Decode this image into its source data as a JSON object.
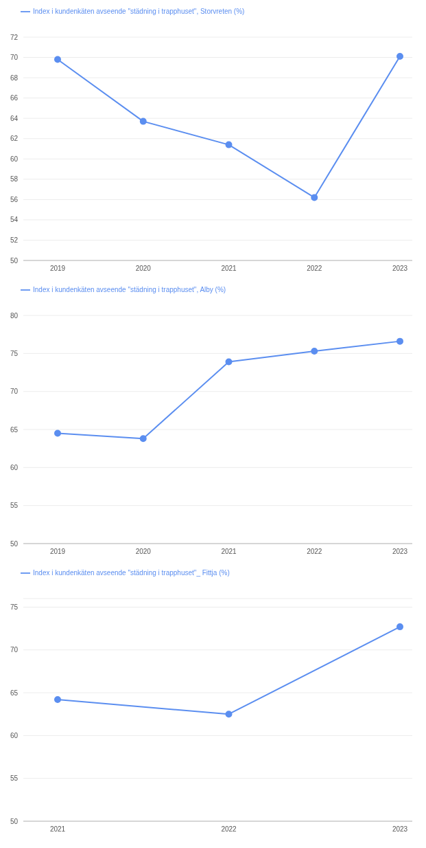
{
  "chart_data": [
    {
      "type": "line",
      "categories": [
        "2019",
        "2020",
        "2021",
        "2022",
        "2023"
      ],
      "series": [
        {
          "name": "Index i kundenkäten avseende \"städning i trapphuset\", Storvreten (%)",
          "color": "#5b8ef0",
          "values": [
            69.8,
            63.7,
            61.4,
            56.2,
            70.1
          ]
        }
      ],
      "ylim": [
        50,
        72
      ],
      "yticks": [
        50,
        52,
        54,
        56,
        58,
        60,
        62,
        64,
        66,
        68,
        70,
        72
      ],
      "grid": "y",
      "legend": "top left",
      "marker": "circle",
      "line_style": "solid"
    },
    {
      "type": "line",
      "categories": [
        "2019",
        "2020",
        "2021",
        "2022",
        "2023"
      ],
      "series": [
        {
          "name": "Index i kundenkäten avseende \"städning i trapphuset\", Alby (%)",
          "color": "#5b8ef0",
          "values": [
            64.5,
            63.8,
            73.9,
            75.3,
            76.6
          ]
        }
      ],
      "ylim": [
        50,
        80
      ],
      "yticks": [
        50,
        55,
        60,
        65,
        70,
        75,
        80
      ],
      "grid": "y",
      "legend": "top left",
      "marker": "circle",
      "line_style": "solid"
    },
    {
      "type": "line",
      "categories": [
        "2021",
        "2022",
        "2023"
      ],
      "series": [
        {
          "name": "Index i kundenkäten avseende \"städning i trapphuset\"_ Fittja (%)",
          "color": "#5b8ef0",
          "values": [
            64.2,
            62.5,
            72.7
          ]
        }
      ],
      "ylim": [
        50,
        76
      ],
      "yticks": [
        50,
        55,
        60,
        65,
        70,
        75
      ],
      "grid": "y",
      "legend": "top left",
      "marker": "circle",
      "line_style": "solid"
    }
  ]
}
